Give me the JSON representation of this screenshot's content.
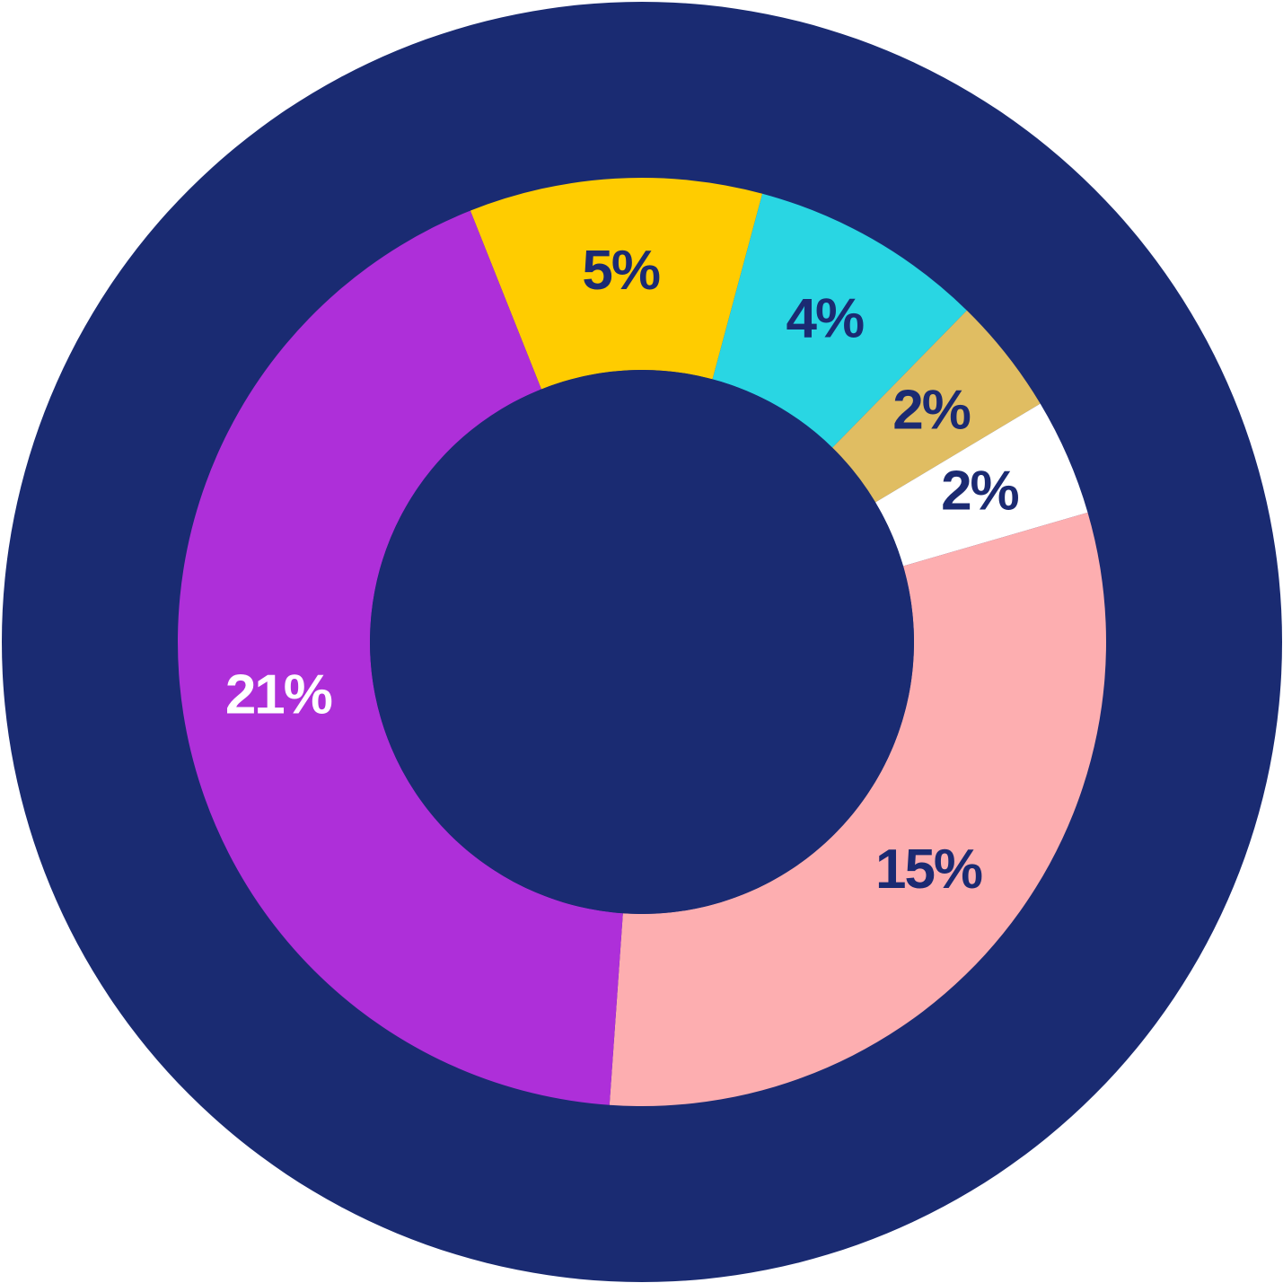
{
  "chart_data": {
    "type": "donut",
    "values": [
      5,
      4,
      2,
      2,
      15,
      21
    ],
    "value_labels": [
      "5%",
      "4%",
      "2%",
      "2%",
      "15%",
      "21%"
    ],
    "colors": [
      "#ffcc00",
      "#29d6e3",
      "#e0bd62",
      "#ffffff",
      "#fdaeb0",
      "#ae2fd9"
    ],
    "label_colors": [
      "#1b2a72",
      "#1b2a72",
      "#1b2a72",
      "#1b2a72",
      "#1b2a72",
      "#ffffff"
    ],
    "background_color": "#1a2b72"
  }
}
